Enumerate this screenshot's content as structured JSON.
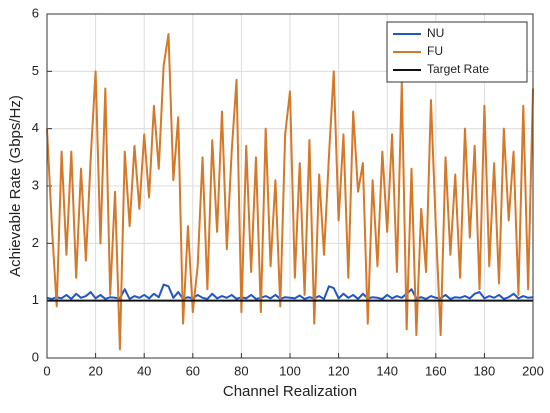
{
  "chart_data": {
    "type": "line",
    "xlabel": "Channel Realization",
    "ylabel": "Achievable Rate (Gbps/Hz)",
    "xlim": [
      0,
      200
    ],
    "xticks": [
      0,
      20,
      40,
      60,
      80,
      100,
      120,
      140,
      160,
      180,
      200
    ],
    "ylim": [
      0,
      6
    ],
    "yticks": [
      0,
      1,
      2,
      3,
      4,
      5,
      6
    ],
    "grid": true,
    "legend": "northeast",
    "series": [
      {
        "name": "NU",
        "color": "#2057c4",
        "x": [
          0,
          2,
          4,
          6,
          8,
          10,
          12,
          14,
          16,
          18,
          20,
          22,
          24,
          26,
          28,
          30,
          32,
          34,
          36,
          38,
          40,
          42,
          44,
          46,
          48,
          50,
          52,
          54,
          56,
          58,
          60,
          62,
          64,
          66,
          68,
          70,
          72,
          74,
          76,
          78,
          80,
          82,
          84,
          86,
          88,
          90,
          92,
          94,
          96,
          98,
          100,
          102,
          104,
          106,
          108,
          110,
          112,
          114,
          116,
          118,
          120,
          122,
          124,
          126,
          128,
          130,
          132,
          134,
          136,
          138,
          140,
          142,
          144,
          146,
          148,
          150,
          152,
          154,
          156,
          158,
          160,
          162,
          164,
          166,
          168,
          170,
          172,
          174,
          176,
          178,
          180,
          182,
          184,
          186,
          188,
          190,
          192,
          194,
          196,
          198,
          200
        ],
        "values": [
          1.05,
          1.03,
          1.06,
          1.04,
          1.1,
          1.03,
          1.12,
          1.05,
          1.08,
          1.15,
          1.04,
          1.1,
          1.03,
          1.06,
          1.05,
          1.04,
          1.2,
          1.03,
          1.08,
          1.05,
          1.1,
          1.04,
          1.12,
          1.06,
          1.28,
          1.25,
          1.05,
          1.15,
          1.03,
          1.06,
          1.04,
          1.1,
          1.05,
          1.03,
          1.12,
          1.04,
          1.08,
          1.05,
          1.1,
          1.03,
          1.06,
          1.04,
          1.1,
          1.03,
          1.05,
          1.08,
          1.04,
          1.1,
          1.03,
          1.06,
          1.05,
          1.04,
          1.09,
          1.03,
          1.06,
          1.04,
          1.08,
          1.03,
          1.25,
          1.22,
          1.04,
          1.12,
          1.05,
          1.1,
          1.03,
          1.12,
          1.04,
          1.06,
          1.05,
          1.03,
          1.1,
          1.04,
          1.08,
          1.05,
          1.12,
          1.2,
          1.04,
          1.06,
          1.03,
          1.08,
          1.05,
          1.04,
          1.1,
          1.03,
          1.06,
          1.05,
          1.08,
          1.04,
          1.12,
          1.15,
          1.04,
          1.08,
          1.05,
          1.1,
          1.03,
          1.06,
          1.12,
          1.04,
          1.08,
          1.05,
          1.06
        ]
      },
      {
        "name": "FU",
        "color": "#d4782a",
        "x": [
          0,
          2,
          4,
          6,
          8,
          10,
          12,
          14,
          16,
          18,
          20,
          22,
          24,
          26,
          28,
          30,
          32,
          34,
          36,
          38,
          40,
          42,
          44,
          46,
          48,
          50,
          52,
          54,
          56,
          58,
          60,
          62,
          64,
          66,
          68,
          70,
          72,
          74,
          76,
          78,
          80,
          82,
          84,
          86,
          88,
          90,
          92,
          94,
          96,
          98,
          100,
          102,
          104,
          106,
          108,
          110,
          112,
          114,
          116,
          118,
          120,
          122,
          124,
          126,
          128,
          130,
          132,
          134,
          136,
          138,
          140,
          142,
          144,
          146,
          148,
          150,
          152,
          154,
          156,
          158,
          160,
          162,
          164,
          166,
          168,
          170,
          172,
          174,
          176,
          178,
          180,
          182,
          184,
          186,
          188,
          190,
          192,
          194,
          196,
          198,
          200
        ],
        "values": [
          4.0,
          2.3,
          0.9,
          3.6,
          1.8,
          3.6,
          1.4,
          3.3,
          1.7,
          3.5,
          5.0,
          2.0,
          4.7,
          1.1,
          2.9,
          0.15,
          3.6,
          2.3,
          3.7,
          2.6,
          3.9,
          2.8,
          4.4,
          3.3,
          5.1,
          5.65,
          3.1,
          4.2,
          0.6,
          2.3,
          0.8,
          1.6,
          3.5,
          1.2,
          3.8,
          2.2,
          4.3,
          1.9,
          3.6,
          4.85,
          0.8,
          3.7,
          1.5,
          3.5,
          0.8,
          4.0,
          1.6,
          3.1,
          0.9,
          3.9,
          4.65,
          1.4,
          3.4,
          1.1,
          3.8,
          0.6,
          3.2,
          1.8,
          3.5,
          5.0,
          2.4,
          3.9,
          1.4,
          4.3,
          2.9,
          3.4,
          0.6,
          3.1,
          1.6,
          3.6,
          2.2,
          3.9,
          1.5,
          4.8,
          0.5,
          3.3,
          0.4,
          2.6,
          1.5,
          4.5,
          2.3,
          0.4,
          3.5,
          1.8,
          3.2,
          1.4,
          4.0,
          2.1,
          3.7,
          1.2,
          4.4,
          1.6,
          3.4,
          1.3,
          4.0,
          2.4,
          3.6,
          1.1,
          4.4,
          1.2,
          4.7
        ]
      },
      {
        "name": "Target Rate",
        "color": "#111111",
        "x": [
          0,
          200
        ],
        "values": [
          1,
          1
        ]
      }
    ]
  }
}
